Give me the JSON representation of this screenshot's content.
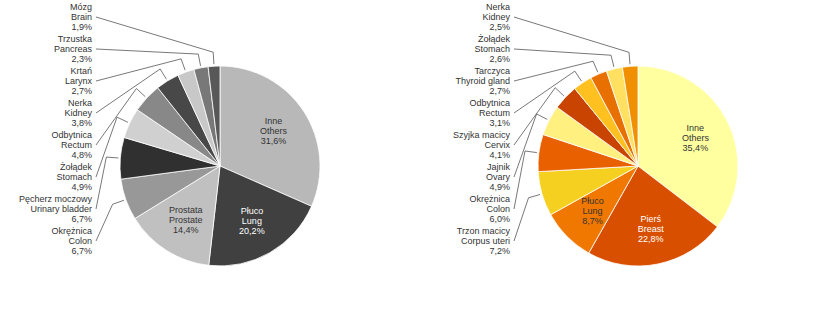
{
  "chart_data": [
    {
      "type": "pie",
      "categories": [
        "Inne\nOthers",
        "Płuco\nLung",
        "Prostata\nProstate",
        "Okrężnica\nColon",
        "Pęcherz moczowy\nUrinary bladder",
        "Żołądek\nStomach",
        "Odbytnica\nRectum",
        "Nerka\nKidney",
        "Krtań\nLarynx",
        "Trzustka\nPancreas",
        "Mózg\nBrain"
      ],
      "values": [
        31.6,
        20.2,
        14.4,
        6.7,
        6.7,
        4.9,
        4.8,
        3.8,
        2.7,
        2.3,
        1.9
      ],
      "value_labels": [
        "31,6%",
        "20,2%",
        "14,4%",
        "6,7%",
        "6,7%",
        "4,9%",
        "4,8%",
        "3,8%",
        "2,7%",
        "2,3%",
        "1,9%"
      ],
      "colors": [
        "#b8b8b8",
        "#404040",
        "#c0c0c0",
        "#989898",
        "#303030",
        "#d0d0d0",
        "#888888",
        "#484848",
        "#c8c8c8",
        "#787878",
        "#585858"
      ]
    },
    {
      "type": "pie",
      "categories": [
        "Inne\nOthers",
        "Pierś\nBreast",
        "Płuco\nLung",
        "Trzon macicy\nCorpus uteri",
        "Okrężnica\nColon",
        "Jajnik\nOvary",
        "Szyjka macicy\nCervix",
        "Odbytnica\nRectum",
        "Tarczyca\nThyroid gland",
        "Żołądek\nStomach",
        "Nerka\nKidney"
      ],
      "values": [
        35.4,
        22.8,
        8.7,
        7.2,
        6.0,
        4.9,
        4.1,
        3.1,
        2.7,
        2.6,
        2.5
      ],
      "value_labels": [
        "35,4%",
        "22,8%",
        "8,7%",
        "7,2%",
        "6,0%",
        "4,9%",
        "4,1%",
        "3,1%",
        "2,7%",
        "2,6%",
        "2,5%"
      ],
      "colors": [
        "#ffffa0",
        "#d94f00",
        "#f07800",
        "#f5d020",
        "#e86000",
        "#fff080",
        "#c84400",
        "#ffc020",
        "#e87000",
        "#ffe060",
        "#f09000"
      ]
    }
  ]
}
